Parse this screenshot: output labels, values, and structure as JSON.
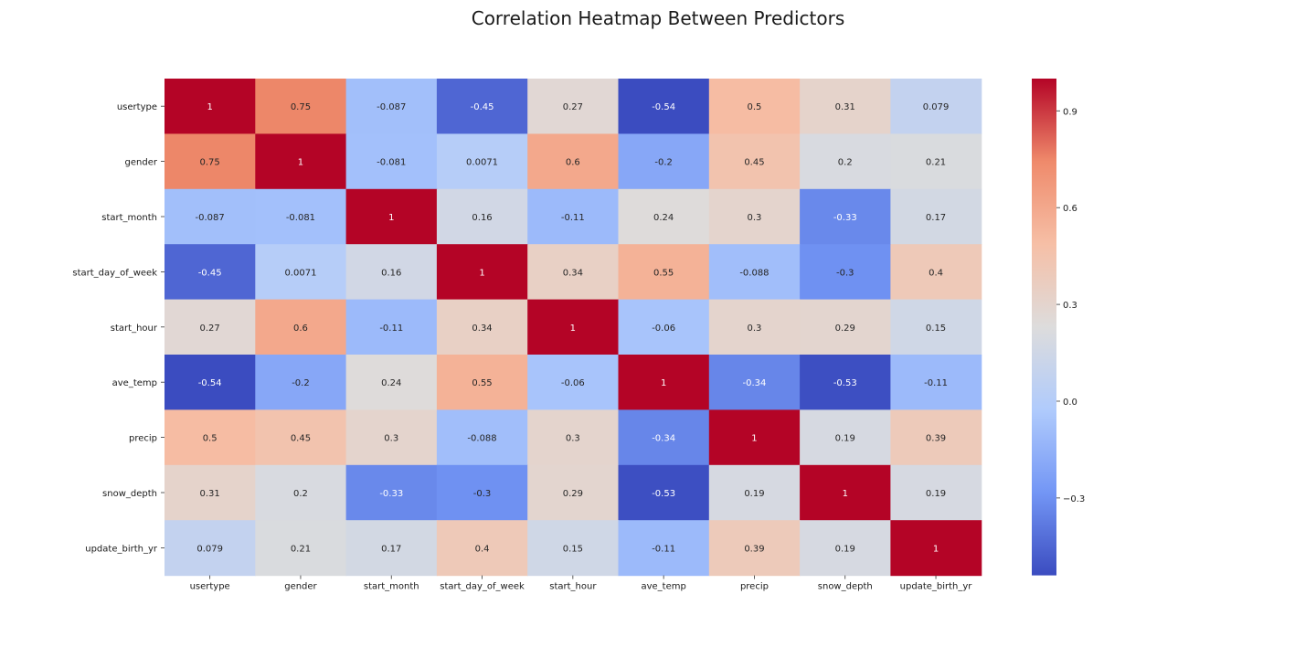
{
  "chart_data": {
    "type": "heatmap",
    "title": "Correlation Heatmap Between Predictors",
    "xlabel": "",
    "ylabel": "",
    "rows": [
      "usertype",
      "gender",
      "start_month",
      "start_day_of_week",
      "start_hour",
      "ave_temp",
      "precip",
      "snow_depth",
      "update_birth_yr"
    ],
    "columns": [
      "usertype",
      "gender",
      "start_month",
      "start_day_of_week",
      "start_hour",
      "ave_temp",
      "precip",
      "snow_depth",
      "update_birth_yr"
    ],
    "values": [
      [
        1,
        0.75,
        -0.087,
        -0.45,
        0.27,
        -0.54,
        0.5,
        0.31,
        0.079
      ],
      [
        0.75,
        1,
        -0.081,
        0.0071,
        0.6,
        -0.2,
        0.45,
        0.2,
        0.21
      ],
      [
        -0.087,
        -0.081,
        1,
        0.16,
        -0.11,
        0.24,
        0.3,
        -0.33,
        0.17
      ],
      [
        -0.45,
        0.0071,
        0.16,
        1,
        0.34,
        0.55,
        -0.088,
        -0.3,
        0.4
      ],
      [
        0.27,
        0.6,
        -0.11,
        0.34,
        1,
        -0.06,
        0.3,
        0.29,
        0.15
      ],
      [
        -0.54,
        -0.2,
        0.24,
        0.55,
        -0.06,
        1,
        -0.34,
        -0.53,
        -0.11
      ],
      [
        0.5,
        0.45,
        0.3,
        -0.088,
        0.3,
        -0.34,
        1,
        0.19,
        0.39
      ],
      [
        0.31,
        0.2,
        -0.33,
        -0.3,
        0.29,
        -0.53,
        0.19,
        1,
        0.19
      ],
      [
        0.079,
        0.21,
        0.17,
        0.4,
        0.15,
        -0.11,
        0.39,
        0.19,
        1
      ]
    ],
    "annotations": [
      [
        "1",
        "0.75",
        "-0.087",
        "-0.45",
        "0.27",
        "-0.54",
        "0.5",
        "0.31",
        "0.079"
      ],
      [
        "0.75",
        "1",
        "-0.081",
        "0.0071",
        "0.6",
        "-0.2",
        "0.45",
        "0.2",
        "0.21"
      ],
      [
        "-0.087",
        "-0.081",
        "1",
        "0.16",
        "-0.11",
        "0.24",
        "0.3",
        "-0.33",
        "0.17"
      ],
      [
        "-0.45",
        "0.0071",
        "0.16",
        "1",
        "0.34",
        "0.55",
        "-0.088",
        "-0.3",
        "0.4"
      ],
      [
        "0.27",
        "0.6",
        "-0.11",
        "0.34",
        "1",
        "-0.06",
        "0.3",
        "0.29",
        "0.15"
      ],
      [
        "-0.54",
        "-0.2",
        "0.24",
        "0.55",
        "-0.06",
        "1",
        "-0.34",
        "-0.53",
        "-0.11"
      ],
      [
        "0.5",
        "0.45",
        "0.3",
        "-0.088",
        "0.3",
        "-0.34",
        "1",
        "0.19",
        "0.39"
      ],
      [
        "0.31",
        "0.2",
        "-0.33",
        "-0.3",
        "0.29",
        "-0.53",
        "0.19",
        "1",
        "0.19"
      ],
      [
        "0.079",
        "0.21",
        "0.17",
        "0.4",
        "0.15",
        "-0.11",
        "0.39",
        "0.19",
        "1"
      ]
    ],
    "colormap": "coolwarm",
    "colormap_stops": [
      "#3b4cc0",
      "#7396f5",
      "#b0cbfc",
      "#dddcdc",
      "#f6bfa6",
      "#ef8a6b",
      "#b40426"
    ],
    "vmin": -0.54,
    "vmax": 1,
    "colorbar_ticks": [
      0.9,
      0.6,
      0.3,
      0.0,
      -0.3
    ],
    "colorbar_tick_labels": [
      "0.9",
      "0.6",
      "0.3",
      "0.0",
      "−0.3"
    ],
    "grid": false,
    "legend": "colorbar-right"
  }
}
